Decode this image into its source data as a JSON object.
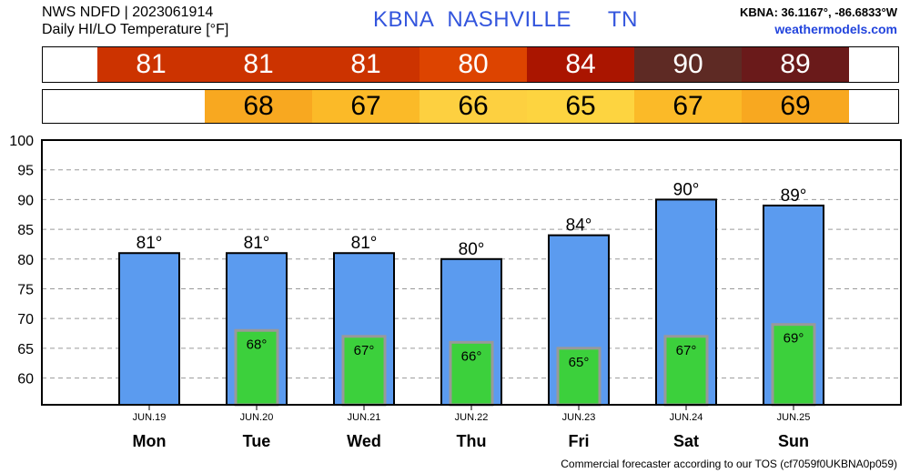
{
  "header": {
    "source": "NWS NDFD | 2023061914",
    "product": "Daily HI/LO Temperature [°F]",
    "station": "KBNA",
    "city": "NASHVILLE",
    "state": "TN",
    "coords": "KBNA: 36.1167°, -86.6833°W",
    "site": "weathermodels.com"
  },
  "footer": "Commercial forecaster according to our TOS (cf7059f0UKBNA0p059)",
  "strips": {
    "hi": [
      {
        "value": "81",
        "color": "#cc3300"
      },
      {
        "value": "81",
        "color": "#cc3300"
      },
      {
        "value": "81",
        "color": "#cc3300"
      },
      {
        "value": "80",
        "color": "#dd4400"
      },
      {
        "value": "84",
        "color": "#aa1500"
      },
      {
        "value": "90",
        "color": "#5e2a24"
      },
      {
        "value": "89",
        "color": "#6a1a1a"
      }
    ],
    "lo": [
      {
        "value": "",
        "color": "#ffffff"
      },
      {
        "value": "68",
        "color": "#f8a820"
      },
      {
        "value": "67",
        "color": "#fbba28"
      },
      {
        "value": "66",
        "color": "#fdd040"
      },
      {
        "value": "65",
        "color": "#fdd440"
      },
      {
        "value": "67",
        "color": "#fbba28"
      },
      {
        "value": "69",
        "color": "#f8a820"
      }
    ]
  },
  "chart_data": {
    "type": "bar",
    "categories": [
      "Mon",
      "Tue",
      "Wed",
      "Thu",
      "Fri",
      "Sat",
      "Sun"
    ],
    "dates": [
      "JUN.19",
      "JUN.20",
      "JUN.21",
      "JUN.22",
      "JUN.23",
      "JUN.24",
      "JUN.25"
    ],
    "series": [
      {
        "values": [
          81,
          81,
          81,
          80,
          84,
          90,
          89
        ],
        "color": "#5b9bef"
      },
      {
        "values": [
          null,
          68,
          67,
          66,
          65,
          67,
          69
        ],
        "color": "#3cd03c"
      }
    ],
    "hi_labels": [
      "81°",
      "81°",
      "81°",
      "80°",
      "84°",
      "90°",
      "89°"
    ],
    "lo_labels": [
      "",
      "68°",
      "67°",
      "66°",
      "65°",
      "67°",
      "69°"
    ],
    "yticks": [
      60,
      65,
      70,
      75,
      80,
      85,
      90,
      95,
      100
    ],
    "ylim": [
      55.5,
      100
    ],
    "grid": true
  }
}
